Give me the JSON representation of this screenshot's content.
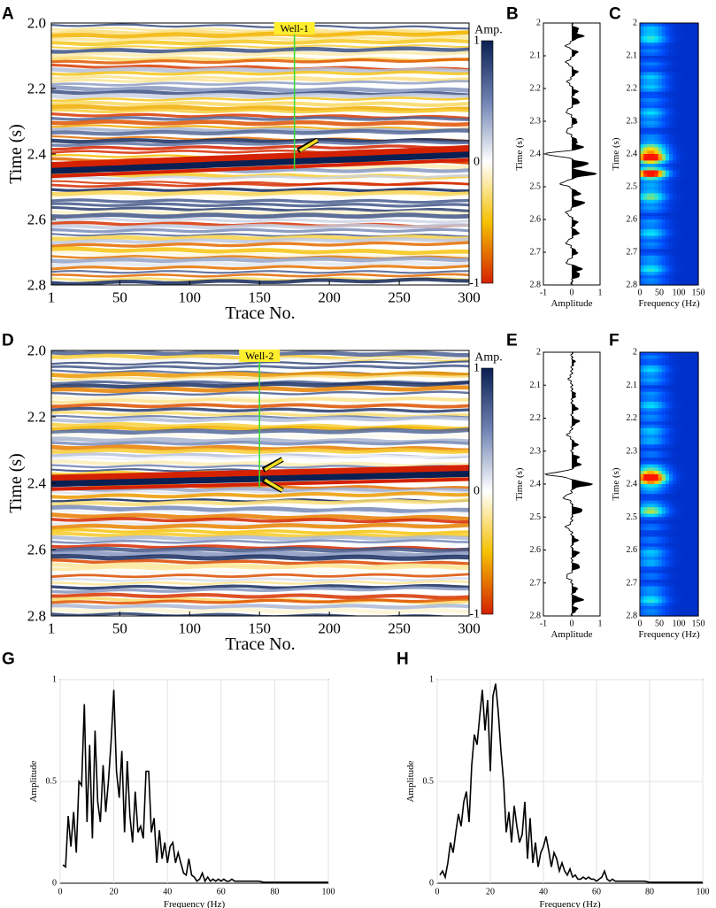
{
  "figure": {
    "panel_labels": [
      "A",
      "B",
      "C",
      "D",
      "E",
      "F",
      "G",
      "H"
    ],
    "colors": {
      "seismic_scale": [
        "#0a1f52",
        "#6f83b3",
        "#ffffff",
        "#f5c000",
        "#d42100"
      ],
      "spectrum_scale": [
        "#00007a",
        "#0050ff",
        "#00e4ff",
        "#ffe000",
        "#ff1400"
      ],
      "well_line": "#33dd33",
      "well_label_bg": "#ffee2e",
      "arrow": "#f0dd20"
    }
  },
  "chart_data": [
    {
      "id": "A",
      "type": "heatmap",
      "title": "",
      "well_label": "Well-1",
      "well_trace": 175,
      "xlabel": "Trace No.",
      "ylabel": "Time (s)",
      "xlim": [
        1,
        300
      ],
      "ylim": [
        2.8,
        2.0
      ],
      "xticks": [
        1,
        50,
        100,
        150,
        200,
        250,
        300
      ],
      "yticks": [
        2.0,
        2.2,
        2.4,
        2.6,
        2.8
      ],
      "colorbar": {
        "label": "Amp.",
        "ticks": [
          1,
          0,
          -1
        ],
        "range": [
          -1,
          1
        ]
      },
      "strong_event": {
        "time_start": 2.44,
        "time_end": 2.39,
        "polarity": "negative"
      },
      "arrow_times": [
        2.39
      ]
    },
    {
      "id": "B",
      "type": "line",
      "xlabel": "Amplitude",
      "ylabel": "Time (s)",
      "xlim": [
        -1,
        1
      ],
      "ylim": [
        2.8,
        2.0
      ],
      "xticks": [
        -1,
        0,
        1
      ],
      "yticks": [
        2,
        2.1,
        2.2,
        2.3,
        2.4,
        2.5,
        2.6,
        2.7,
        2.8
      ],
      "reflections": [
        {
          "t": 2.02,
          "a": 0.25
        },
        {
          "t": 2.04,
          "a": 0.4
        },
        {
          "t": 2.07,
          "a": -0.2
        },
        {
          "t": 2.09,
          "a": 0.2
        },
        {
          "t": 2.12,
          "a": -0.2
        },
        {
          "t": 2.15,
          "a": 0.2
        },
        {
          "t": 2.18,
          "a": -0.15
        },
        {
          "t": 2.21,
          "a": 0.2
        },
        {
          "t": 2.24,
          "a": 0.28
        },
        {
          "t": 2.27,
          "a": -0.2
        },
        {
          "t": 2.3,
          "a": 0.2
        },
        {
          "t": 2.33,
          "a": -0.2
        },
        {
          "t": 2.36,
          "a": 0.2
        },
        {
          "t": 2.38,
          "a": 0.4
        },
        {
          "t": 2.4,
          "a": -0.95
        },
        {
          "t": 2.43,
          "a": 0.6
        },
        {
          "t": 2.46,
          "a": 0.85
        },
        {
          "t": 2.49,
          "a": -0.4
        },
        {
          "t": 2.52,
          "a": 0.3
        },
        {
          "t": 2.55,
          "a": 0.45
        },
        {
          "t": 2.58,
          "a": -0.2
        },
        {
          "t": 2.61,
          "a": 0.2
        },
        {
          "t": 2.64,
          "a": 0.25
        },
        {
          "t": 2.67,
          "a": -0.2
        },
        {
          "t": 2.7,
          "a": 0.2
        },
        {
          "t": 2.73,
          "a": -0.2
        },
        {
          "t": 2.75,
          "a": 0.35
        },
        {
          "t": 2.77,
          "a": 0.3
        }
      ]
    },
    {
      "id": "C",
      "type": "heatmap",
      "xlabel": "Frequency (Hz)",
      "ylabel": "Time (s)",
      "xlim": [
        0,
        150
      ],
      "ylim": [
        2.8,
        2.0
      ],
      "xticks": [
        0,
        50,
        100,
        150
      ],
      "yticks": [
        2,
        2.1,
        2.2,
        2.3,
        2.4,
        2.5,
        2.6,
        2.7,
        2.8
      ],
      "energy_peaks": [
        {
          "t": 2.04,
          "strength": 0.3,
          "width": 0.02
        },
        {
          "t": 2.18,
          "strength": 0.22,
          "width": 0.02
        },
        {
          "t": 2.28,
          "strength": 0.2,
          "width": 0.02
        },
        {
          "t": 2.38,
          "strength": 0.4,
          "width": 0.015
        },
        {
          "t": 2.41,
          "strength": 1.0,
          "width": 0.012
        },
        {
          "t": 2.46,
          "strength": 0.95,
          "width": 0.012
        },
        {
          "t": 2.53,
          "strength": 0.35,
          "width": 0.02
        },
        {
          "t": 2.64,
          "strength": 0.22,
          "width": 0.02
        },
        {
          "t": 2.75,
          "strength": 0.25,
          "width": 0.02
        }
      ]
    },
    {
      "id": "D",
      "type": "heatmap",
      "title": "",
      "well_label": "Well-2",
      "well_trace": 150,
      "xlabel": "Trace No.",
      "ylabel": "Time (s)",
      "xlim": [
        1,
        300
      ],
      "ylim": [
        2.8,
        2.0
      ],
      "xticks": [
        1,
        50,
        100,
        150,
        200,
        250,
        300
      ],
      "yticks": [
        2.0,
        2.2,
        2.4,
        2.6,
        2.8
      ],
      "colorbar": {
        "label": "Amp.",
        "ticks": [
          1,
          0,
          -1
        ],
        "range": [
          -1,
          1
        ]
      },
      "strong_event": {
        "time_start": 2.39,
        "time_end": 2.36,
        "polarity": "negative"
      },
      "arrow_times": [
        2.36,
        2.39
      ]
    },
    {
      "id": "E",
      "type": "line",
      "xlabel": "Amplitude",
      "ylabel": "Time (s)",
      "xlim": [
        -1,
        1
      ],
      "ylim": [
        2.8,
        2.0
      ],
      "xticks": [
        -1,
        0,
        1
      ],
      "yticks": [
        2,
        2.1,
        2.2,
        2.3,
        2.4,
        2.5,
        2.6,
        2.7,
        2.8
      ],
      "reflections": [
        {
          "t": 2.03,
          "a": 0.1
        },
        {
          "t": 2.08,
          "a": -0.1
        },
        {
          "t": 2.13,
          "a": 0.15
        },
        {
          "t": 2.17,
          "a": 0.2
        },
        {
          "t": 2.21,
          "a": 0.25
        },
        {
          "t": 2.25,
          "a": -0.15
        },
        {
          "t": 2.28,
          "a": 0.2
        },
        {
          "t": 2.32,
          "a": 0.25
        },
        {
          "t": 2.34,
          "a": 0.3
        },
        {
          "t": 2.37,
          "a": -0.9
        },
        {
          "t": 2.4,
          "a": 0.7
        },
        {
          "t": 2.44,
          "a": -0.3
        },
        {
          "t": 2.48,
          "a": 0.4
        },
        {
          "t": 2.53,
          "a": -0.2
        },
        {
          "t": 2.57,
          "a": 0.2
        },
        {
          "t": 2.61,
          "a": 0.25
        },
        {
          "t": 2.65,
          "a": 0.3
        },
        {
          "t": 2.68,
          "a": -0.2
        },
        {
          "t": 2.72,
          "a": 0.2
        },
        {
          "t": 2.75,
          "a": 0.4
        },
        {
          "t": 2.78,
          "a": 0.2
        }
      ]
    },
    {
      "id": "F",
      "type": "heatmap",
      "xlabel": "Frequency (Hz)",
      "ylabel": "Time (s)",
      "xlim": [
        0,
        150
      ],
      "ylim": [
        2.8,
        2.0
      ],
      "xticks": [
        0,
        50,
        100,
        150
      ],
      "yticks": [
        2,
        2.1,
        2.2,
        2.3,
        2.4,
        2.5,
        2.6,
        2.7,
        2.8
      ],
      "energy_peaks": [
        {
          "t": 2.06,
          "strength": 0.2,
          "width": 0.02
        },
        {
          "t": 2.16,
          "strength": 0.2,
          "width": 0.02
        },
        {
          "t": 2.25,
          "strength": 0.2,
          "width": 0.02
        },
        {
          "t": 2.38,
          "strength": 1.0,
          "width": 0.018
        },
        {
          "t": 2.48,
          "strength": 0.55,
          "width": 0.01
        },
        {
          "t": 2.62,
          "strength": 0.2,
          "width": 0.02
        },
        {
          "t": 2.75,
          "strength": 0.25,
          "width": 0.02
        }
      ]
    },
    {
      "id": "G",
      "type": "line",
      "xlabel": "Frequency (Hz)",
      "ylabel": "Amplitude",
      "xlim": [
        0,
        100
      ],
      "ylim": [
        0,
        1
      ],
      "xticks": [
        0,
        20,
        40,
        60,
        80,
        100
      ],
      "yticks": [
        0,
        0.5,
        1
      ],
      "grid": true,
      "x": [
        1,
        2,
        3,
        4,
        5,
        6,
        7,
        8,
        9,
        10,
        11,
        12,
        13,
        14,
        15,
        16,
        17,
        18,
        19,
        20,
        21,
        22,
        23,
        24,
        25,
        26,
        27,
        28,
        29,
        30,
        31,
        32,
        33,
        34,
        35,
        36,
        37,
        38,
        39,
        40,
        41,
        42,
        43,
        44,
        45,
        46,
        47,
        48,
        49,
        50,
        51,
        52,
        53,
        54,
        55,
        56,
        57,
        58,
        59,
        60,
        61,
        62,
        63,
        64,
        65,
        66,
        67,
        68,
        69,
        70,
        72,
        74,
        76,
        78,
        80,
        85,
        90,
        95,
        100
      ],
      "values": [
        0.09,
        0.08,
        0.33,
        0.18,
        0.35,
        0.15,
        0.5,
        0.48,
        0.88,
        0.3,
        0.68,
        0.22,
        0.75,
        0.4,
        0.3,
        0.58,
        0.35,
        0.5,
        0.7,
        0.95,
        0.55,
        0.42,
        0.65,
        0.25,
        0.6,
        0.33,
        0.2,
        0.45,
        0.25,
        0.28,
        0.22,
        0.55,
        0.55,
        0.25,
        0.32,
        0.1,
        0.26,
        0.12,
        0.2,
        0.1,
        0.18,
        0.2,
        0.1,
        0.15,
        0.1,
        0.05,
        0.04,
        0.12,
        0.04,
        0.03,
        0.01,
        0.02,
        0.05,
        0.01,
        0.03,
        0.01,
        0.02,
        0.01,
        0.02,
        0.01,
        0.02,
        0.01,
        0.01,
        0.02,
        0.01,
        0.01,
        0.01,
        0.01,
        0.01,
        0.01,
        0.01,
        0.01,
        0.005,
        0.005,
        0.005,
        0.005,
        0.005,
        0.005,
        0.005
      ]
    },
    {
      "id": "H",
      "type": "line",
      "xlabel": "Frequency (Hz)",
      "ylabel": "Amplitude",
      "xlim": [
        0,
        100
      ],
      "ylim": [
        0,
        1
      ],
      "xticks": [
        0,
        20,
        40,
        60,
        80,
        100
      ],
      "yticks": [
        0,
        0.5,
        1
      ],
      "grid": true,
      "x": [
        1,
        2,
        3,
        4,
        5,
        6,
        7,
        8,
        9,
        10,
        11,
        12,
        13,
        14,
        15,
        16,
        17,
        18,
        19,
        20,
        21,
        22,
        23,
        24,
        25,
        26,
        27,
        28,
        29,
        30,
        31,
        32,
        33,
        34,
        35,
        36,
        37,
        38,
        39,
        40,
        41,
        42,
        43,
        44,
        45,
        46,
        47,
        48,
        49,
        50,
        51,
        52,
        53,
        54,
        55,
        56,
        57,
        58,
        59,
        60,
        61,
        62,
        63,
        64,
        65,
        66,
        67,
        68,
        69,
        70,
        72,
        74,
        76,
        78,
        80,
        85,
        90,
        95,
        100
      ],
      "values": [
        0.04,
        0.06,
        0.03,
        0.1,
        0.2,
        0.15,
        0.25,
        0.34,
        0.28,
        0.4,
        0.45,
        0.3,
        0.58,
        0.73,
        0.68,
        0.82,
        0.95,
        0.75,
        0.9,
        0.55,
        0.92,
        0.98,
        0.84,
        0.65,
        0.5,
        0.25,
        0.35,
        0.2,
        0.38,
        0.28,
        0.2,
        0.24,
        0.4,
        0.12,
        0.32,
        0.1,
        0.2,
        0.08,
        0.15,
        0.18,
        0.23,
        0.16,
        0.08,
        0.15,
        0.12,
        0.06,
        0.1,
        0.06,
        0.04,
        0.07,
        0.03,
        0.04,
        0.02,
        0.02,
        0.03,
        0.02,
        0.03,
        0.02,
        0.02,
        0.01,
        0.02,
        0.03,
        0.06,
        0.02,
        0.01,
        0.02,
        0.01,
        0.01,
        0.01,
        0.01,
        0.01,
        0.01,
        0.01,
        0.01,
        0.005,
        0.005,
        0.005,
        0.005,
        0.005
      ]
    }
  ]
}
